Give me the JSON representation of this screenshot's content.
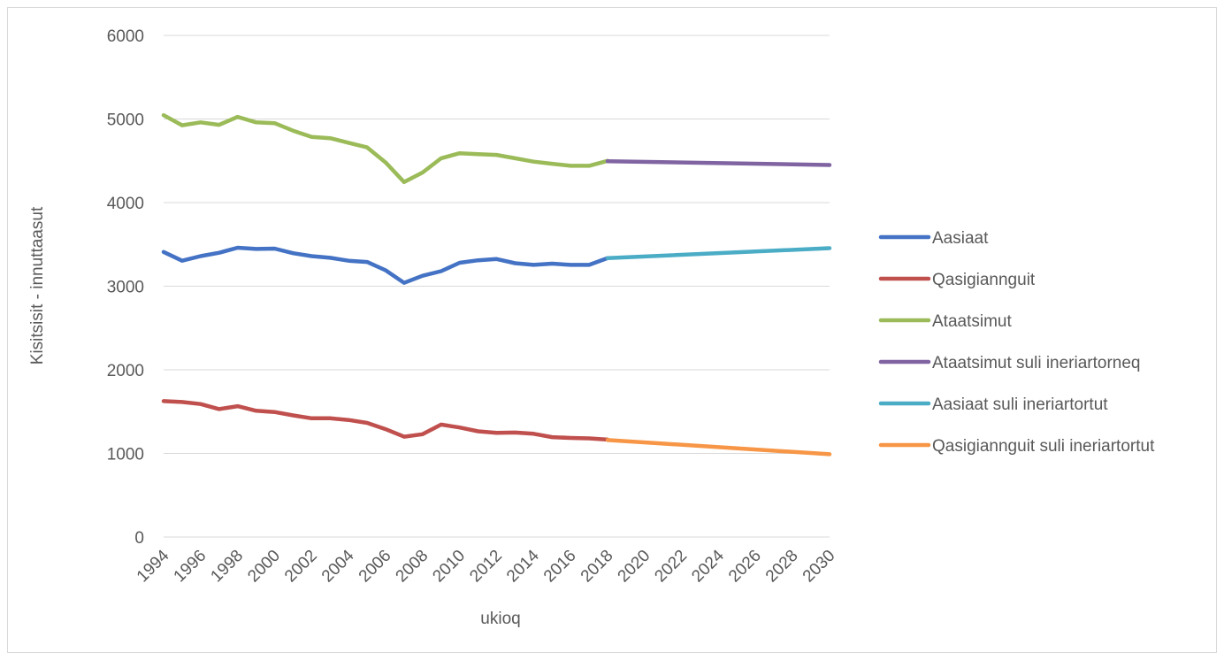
{
  "chart_data": {
    "type": "line",
    "title": "",
    "xlabel": "ukioq",
    "ylabel": "Kisitsisit - innuttaasut",
    "ylim": [
      0,
      6000
    ],
    "yticks": [
      0,
      1000,
      2000,
      3000,
      4000,
      5000,
      6000
    ],
    "xlim": [
      1994,
      2030
    ],
    "xticks": [
      "1994",
      "1996",
      "1998",
      "2000",
      "2002",
      "2004",
      "2006",
      "2008",
      "2010",
      "2012",
      "2014",
      "2016",
      "2018",
      "2020",
      "2022",
      "2024",
      "2026",
      "2028",
      "2030"
    ],
    "grid": "horizontal",
    "legend_position": "right",
    "series": [
      {
        "name": "Aasiaat",
        "color": "#4472c4",
        "x": [
          1994,
          1995,
          1996,
          1997,
          1998,
          1999,
          2000,
          2001,
          2002,
          2003,
          2004,
          2005,
          2006,
          2007,
          2008,
          2009,
          2010,
          2011,
          2012,
          2013,
          2014,
          2015,
          2016,
          2017,
          2018
        ],
        "values": [
          3410,
          3305,
          3360,
          3400,
          3460,
          3445,
          3450,
          3395,
          3360,
          3340,
          3305,
          3290,
          3190,
          3040,
          3125,
          3180,
          3280,
          3310,
          3325,
          3275,
          3255,
          3270,
          3255,
          3255,
          3335
        ]
      },
      {
        "name": "Qasigiannguit",
        "color": "#c0504d",
        "x": [
          1994,
          1995,
          1996,
          1997,
          1998,
          1999,
          2000,
          2001,
          2002,
          2003,
          2004,
          2005,
          2006,
          2007,
          2008,
          2009,
          2010,
          2011,
          2012,
          2013,
          2014,
          2015,
          2016,
          2017,
          2018
        ],
        "values": [
          1625,
          1615,
          1590,
          1530,
          1565,
          1510,
          1495,
          1455,
          1420,
          1420,
          1400,
          1365,
          1290,
          1200,
          1230,
          1345,
          1310,
          1265,
          1245,
          1250,
          1235,
          1195,
          1185,
          1180,
          1165
        ]
      },
      {
        "name": "Ataatsimut",
        "color": "#9bbb59",
        "x": [
          1994,
          1995,
          1996,
          1997,
          1998,
          1999,
          2000,
          2001,
          2002,
          2003,
          2004,
          2005,
          2006,
          2007,
          2008,
          2009,
          2010,
          2011,
          2012,
          2013,
          2014,
          2015,
          2016,
          2017,
          2018
        ],
        "values": [
          5045,
          4925,
          4960,
          4930,
          5025,
          4960,
          4950,
          4860,
          4785,
          4770,
          4715,
          4660,
          4480,
          4245,
          4360,
          4530,
          4590,
          4580,
          4570,
          4530,
          4490,
          4465,
          4440,
          4440,
          4500
        ]
      },
      {
        "name": "Ataatsimut suli ineriartorneq",
        "color": "#8064a2",
        "x": [
          2018,
          2030
        ],
        "values": [
          4495,
          4450
        ]
      },
      {
        "name": "Aasiaat suli ineriartortut",
        "color": "#4bacc6",
        "x": [
          2018,
          2030
        ],
        "values": [
          3335,
          3455
        ]
      },
      {
        "name": "Qasigiannguit suli ineriartortut",
        "color": "#f79646",
        "x": [
          2018,
          2030
        ],
        "values": [
          1160,
          990
        ]
      }
    ]
  }
}
